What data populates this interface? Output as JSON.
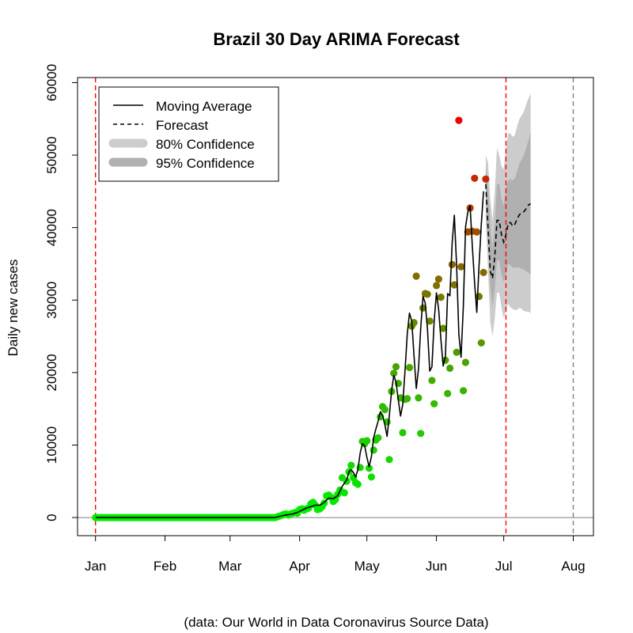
{
  "chart_data": {
    "type": "line",
    "title": "Brazil 30 Day ARIMA Forecast",
    "xlabel": "",
    "ylabel": "Daily new cases",
    "caption": "(data: Our World in Data Coronavirus Source Data)",
    "x_tick_labels": [
      "Jan",
      "Feb",
      "Mar",
      "Apr",
      "May",
      "Jun",
      "Jul",
      "Aug"
    ],
    "x_tick_days": [
      0,
      31,
      60,
      91,
      121,
      152,
      182,
      213
    ],
    "y_ticks": [
      0,
      10000,
      20000,
      30000,
      40000,
      50000,
      60000
    ],
    "xlim_days": [
      -8,
      222
    ],
    "ylim": [
      -2500,
      60700
    ],
    "grid": false,
    "legend": {
      "placement": "top-left",
      "entries": [
        "Moving Average",
        "Forecast",
        "80% Confidence",
        "95% Confidence"
      ]
    },
    "colors": {
      "moving_average": "#000000",
      "forecast": "#000000",
      "ci80": "#cccccc",
      "ci95": "#b0b0b0",
      "vline_observed": "#ff0000",
      "vline_forecast_end": "#808080",
      "points_low": "#00ee00",
      "points_high": "#ee0000",
      "zero_line": "#808080"
    },
    "vlines_days": [
      0,
      183,
      213
    ],
    "points": [
      [
        0,
        0
      ],
      [
        1,
        0
      ],
      [
        2,
        0
      ],
      [
        3,
        0
      ],
      [
        4,
        0
      ],
      [
        5,
        0
      ],
      [
        6,
        0
      ],
      [
        7,
        0
      ],
      [
        8,
        0
      ],
      [
        9,
        0
      ],
      [
        10,
        0
      ],
      [
        11,
        0
      ],
      [
        12,
        0
      ],
      [
        13,
        0
      ],
      [
        14,
        0
      ],
      [
        15,
        0
      ],
      [
        16,
        0
      ],
      [
        17,
        0
      ],
      [
        18,
        0
      ],
      [
        19,
        0
      ],
      [
        20,
        0
      ],
      [
        21,
        0
      ],
      [
        22,
        0
      ],
      [
        23,
        0
      ],
      [
        24,
        0
      ],
      [
        25,
        0
      ],
      [
        26,
        0
      ],
      [
        27,
        0
      ],
      [
        28,
        0
      ],
      [
        29,
        0
      ],
      [
        30,
        0
      ],
      [
        31,
        0
      ],
      [
        32,
        0
      ],
      [
        33,
        0
      ],
      [
        34,
        0
      ],
      [
        35,
        0
      ],
      [
        36,
        0
      ],
      [
        37,
        0
      ],
      [
        38,
        0
      ],
      [
        39,
        0
      ],
      [
        40,
        0
      ],
      [
        41,
        0
      ],
      [
        42,
        0
      ],
      [
        43,
        0
      ],
      [
        44,
        0
      ],
      [
        45,
        0
      ],
      [
        46,
        0
      ],
      [
        47,
        0
      ],
      [
        48,
        0
      ],
      [
        49,
        0
      ],
      [
        50,
        0
      ],
      [
        51,
        0
      ],
      [
        52,
        0
      ],
      [
        53,
        0
      ],
      [
        54,
        0
      ],
      [
        55,
        0
      ],
      [
        56,
        0
      ],
      [
        57,
        0
      ],
      [
        58,
        0
      ],
      [
        59,
        0
      ],
      [
        60,
        0
      ],
      [
        61,
        0
      ],
      [
        62,
        0
      ],
      [
        63,
        0
      ],
      [
        64,
        0
      ],
      [
        65,
        0
      ],
      [
        66,
        0
      ],
      [
        67,
        0
      ],
      [
        68,
        0
      ],
      [
        69,
        0
      ],
      [
        70,
        0
      ],
      [
        71,
        0
      ],
      [
        72,
        0
      ],
      [
        73,
        0
      ],
      [
        74,
        0
      ],
      [
        75,
        0
      ],
      [
        76,
        0
      ],
      [
        77,
        0
      ],
      [
        78,
        0
      ],
      [
        79,
        0
      ],
      [
        80,
        0
      ],
      [
        81,
        100
      ],
      [
        82,
        200
      ],
      [
        83,
        300
      ],
      [
        84,
        450
      ],
      [
        85,
        500
      ],
      [
        86,
        350
      ],
      [
        87,
        500
      ],
      [
        88,
        600
      ],
      [
        89,
        700
      ],
      [
        90,
        600
      ],
      [
        91,
        1100
      ],
      [
        92,
        1200
      ],
      [
        93,
        1000
      ],
      [
        94,
        1200
      ],
      [
        95,
        1300
      ],
      [
        96,
        1900
      ],
      [
        97,
        2100
      ],
      [
        98,
        1700
      ],
      [
        99,
        1100
      ],
      [
        100,
        1200
      ],
      [
        101,
        1500
      ],
      [
        102,
        2000
      ],
      [
        103,
        3000
      ],
      [
        104,
        3100
      ],
      [
        105,
        2800
      ],
      [
        106,
        2200
      ],
      [
        107,
        2500
      ],
      [
        108,
        3200
      ],
      [
        109,
        3800
      ],
      [
        110,
        5500
      ],
      [
        111,
        3400
      ],
      [
        112,
        5000
      ],
      [
        113,
        6300
      ],
      [
        114,
        7200
      ],
      [
        115,
        5500
      ],
      [
        116,
        4800
      ],
      [
        117,
        4600
      ],
      [
        118,
        6900
      ],
      [
        119,
        10500
      ],
      [
        120,
        10200
      ],
      [
        121,
        10600
      ],
      [
        122,
        6800
      ],
      [
        123,
        5600
      ],
      [
        124,
        9300
      ],
      [
        125,
        10700
      ],
      [
        126,
        11000
      ],
      [
        127,
        13900
      ],
      [
        128,
        15300
      ],
      [
        129,
        14900
      ],
      [
        130,
        13200
      ],
      [
        131,
        8000
      ],
      [
        132,
        17400
      ],
      [
        133,
        19900
      ],
      [
        134,
        20800
      ],
      [
        135,
        18500
      ],
      [
        136,
        16500
      ],
      [
        137,
        11700
      ],
      [
        138,
        16300
      ],
      [
        139,
        16400
      ],
      [
        140,
        20700
      ],
      [
        141,
        26400
      ],
      [
        142,
        26900
      ],
      [
        143,
        33300
      ],
      [
        144,
        16500
      ],
      [
        145,
        11600
      ],
      [
        146,
        28900
      ],
      [
        147,
        30900
      ],
      [
        148,
        30800
      ],
      [
        149,
        27100
      ],
      [
        150,
        18900
      ],
      [
        151,
        15700
      ],
      [
        152,
        32000
      ],
      [
        153,
        32900
      ],
      [
        154,
        30400
      ],
      [
        155,
        26100
      ],
      [
        156,
        21700
      ],
      [
        157,
        17100
      ],
      [
        158,
        20600
      ],
      [
        159,
        34900
      ],
      [
        160,
        32100
      ],
      [
        161,
        22800
      ],
      [
        162,
        54800
      ],
      [
        163,
        34600
      ],
      [
        164,
        17500
      ],
      [
        165,
        21400
      ],
      [
        166,
        39400
      ],
      [
        167,
        42700
      ],
      [
        168,
        39500
      ],
      [
        169,
        46800
      ],
      [
        170,
        39400
      ],
      [
        171,
        30500
      ],
      [
        172,
        24100
      ],
      [
        173,
        33800
      ],
      [
        174,
        46700
      ]
    ],
    "moving_average": [
      [
        0,
        0
      ],
      [
        80,
        0
      ],
      [
        82,
        150
      ],
      [
        84,
        300
      ],
      [
        86,
        400
      ],
      [
        88,
        500
      ],
      [
        90,
        700
      ],
      [
        92,
        1000
      ],
      [
        94,
        1300
      ],
      [
        96,
        1500
      ],
      [
        98,
        1700
      ],
      [
        100,
        1700
      ],
      [
        102,
        2100
      ],
      [
        104,
        2700
      ],
      [
        106,
        2600
      ],
      [
        108,
        3000
      ],
      [
        110,
        4300
      ],
      [
        112,
        5200
      ],
      [
        113,
        6300
      ],
      [
        114,
        6600
      ],
      [
        115,
        6200
      ],
      [
        116,
        5600
      ],
      [
        117,
        6600
      ],
      [
        118,
        8900
      ],
      [
        119,
        10200
      ],
      [
        120,
        9900
      ],
      [
        121,
        8300
      ],
      [
        122,
        7000
      ],
      [
        123,
        8400
      ],
      [
        124,
        11000
      ],
      [
        125,
        12200
      ],
      [
        126,
        13300
      ],
      [
        127,
        14600
      ],
      [
        128,
        14100
      ],
      [
        129,
        12800
      ],
      [
        130,
        11200
      ],
      [
        131,
        14000
      ],
      [
        132,
        17500
      ],
      [
        133,
        19600
      ],
      [
        134,
        18700
      ],
      [
        135,
        16200
      ],
      [
        136,
        14000
      ],
      [
        137,
        15600
      ],
      [
        138,
        20300
      ],
      [
        139,
        25300
      ],
      [
        140,
        28200
      ],
      [
        141,
        27100
      ],
      [
        142,
        22400
      ],
      [
        143,
        17800
      ],
      [
        144,
        20500
      ],
      [
        145,
        26100
      ],
      [
        146,
        30500
      ],
      [
        147,
        29600
      ],
      [
        148,
        26100
      ],
      [
        149,
        20200
      ],
      [
        150,
        20800
      ],
      [
        151,
        27100
      ],
      [
        152,
        31000
      ],
      [
        153,
        28700
      ],
      [
        154,
        24600
      ],
      [
        155,
        20900
      ],
      [
        156,
        22200
      ],
      [
        157,
        30900
      ],
      [
        158,
        30600
      ],
      [
        159,
        37800
      ],
      [
        160,
        41700
      ],
      [
        161,
        34700
      ],
      [
        162,
        25300
      ],
      [
        163,
        22100
      ],
      [
        164,
        29200
      ],
      [
        165,
        40100
      ],
      [
        166,
        42200
      ],
      [
        167,
        43000
      ],
      [
        168,
        37500
      ],
      [
        169,
        32400
      ],
      [
        170,
        28300
      ],
      [
        171,
        34700
      ],
      [
        172,
        40500
      ],
      [
        173,
        45000
      ]
    ],
    "forecast": [
      [
        174,
        46000
      ],
      [
        175,
        40000
      ],
      [
        176,
        34000
      ],
      [
        177,
        33000
      ],
      [
        178,
        36000
      ],
      [
        179,
        41000
      ],
      [
        180,
        41000
      ],
      [
        181,
        39000
      ],
      [
        182,
        38000
      ],
      [
        183,
        39000
      ],
      [
        184,
        40600
      ],
      [
        185,
        40700
      ],
      [
        186,
        40200
      ],
      [
        187,
        40500
      ],
      [
        188,
        41200
      ],
      [
        189,
        41800
      ],
      [
        190,
        42000
      ],
      [
        191,
        42200
      ],
      [
        192,
        42600
      ],
      [
        193,
        43100
      ],
      [
        194,
        43300
      ]
    ],
    "ci95": {
      "x": [
        174,
        175,
        176,
        177,
        178,
        179,
        180,
        181,
        182,
        183,
        184,
        185,
        186,
        187,
        188,
        189,
        190,
        191,
        192,
        193,
        194
      ],
      "lower": [
        41000,
        34000,
        27000,
        25000,
        27500,
        31000,
        31000,
        29000,
        27500,
        28500,
        29500,
        29000,
        28800,
        28600,
        28700,
        28900,
        28800,
        28500,
        28400,
        28400,
        28200
      ],
      "upper": [
        50000,
        49000,
        44000,
        41000,
        45000,
        51000,
        50000,
        48500,
        48000,
        51000,
        53000,
        53000,
        52500,
        52800,
        54000,
        55000,
        55500,
        56000,
        57000,
        57800,
        58500
      ]
    },
    "ci80": {
      "x": [
        174,
        175,
        176,
        177,
        178,
        179,
        180,
        181,
        182,
        183,
        184,
        185,
        186,
        187,
        188,
        189,
        190,
        191,
        192,
        193,
        194
      ],
      "lower": [
        43000,
        37500,
        32000,
        29000,
        31500,
        35500,
        35500,
        33500,
        32500,
        33500,
        35000,
        34800,
        34500,
        34500,
        34500,
        34500,
        34300,
        34200,
        34000,
        33800,
        33500
      ],
      "upper": [
        48500,
        46000,
        40500,
        37000,
        40500,
        46000,
        46000,
        44000,
        43000,
        45500,
        46500,
        46700,
        46500,
        46800,
        47800,
        48800,
        49400,
        50000,
        51000,
        52000,
        53200
      ]
    }
  }
}
